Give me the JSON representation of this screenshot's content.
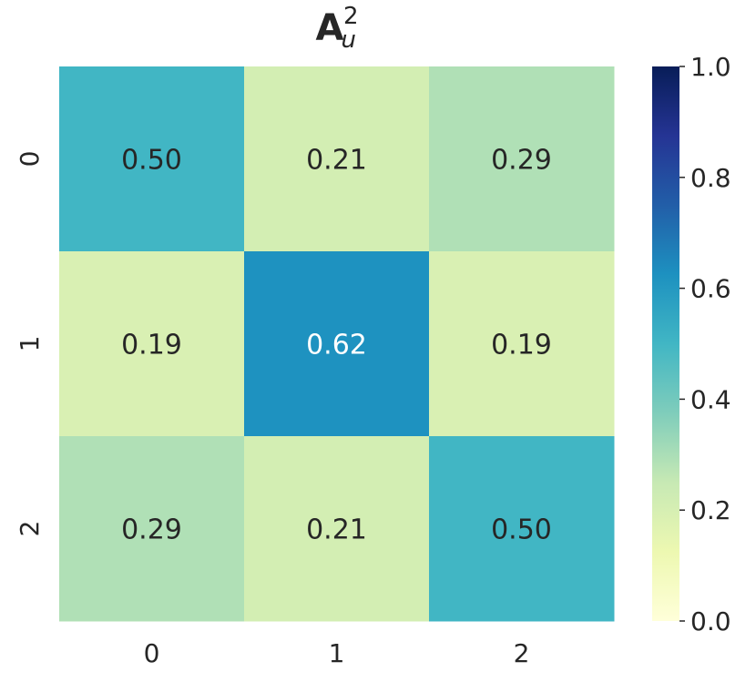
{
  "chart_data": {
    "type": "heatmap",
    "title": {
      "base": "A",
      "subscript": "u",
      "superscript": "2"
    },
    "x_tick_labels": [
      "0",
      "1",
      "2"
    ],
    "y_tick_labels": [
      "0",
      "1",
      "2"
    ],
    "values": [
      [
        0.5,
        0.21,
        0.29
      ],
      [
        0.19,
        0.62,
        0.19
      ],
      [
        0.29,
        0.21,
        0.5
      ]
    ],
    "value_labels": [
      [
        "0.50",
        "0.21",
        "0.29"
      ],
      [
        "0.19",
        "0.62",
        "0.19"
      ],
      [
        "0.29",
        "0.21",
        "0.50"
      ]
    ],
    "colormap": "YlGnBu",
    "colorbar": {
      "range": [
        0.0,
        1.0
      ],
      "ticks": [
        0.0,
        0.2,
        0.4,
        0.6,
        0.8,
        1.0
      ],
      "tick_labels": [
        "0.0",
        "0.2",
        "0.4",
        "0.6",
        "0.8",
        "1.0"
      ]
    }
  }
}
